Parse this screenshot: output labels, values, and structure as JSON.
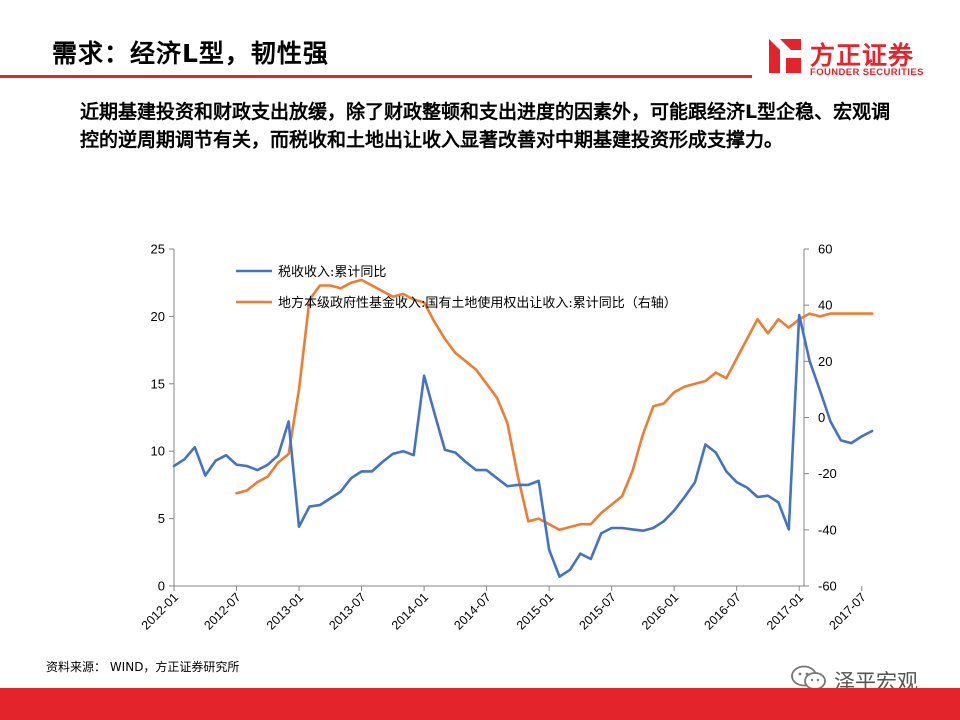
{
  "header": {
    "title": "需求：经济L型，韧性强"
  },
  "logo": {
    "name_cn": "方正证券",
    "name_en": "FOUNDER SECURITIES"
  },
  "summary": "近期基建投资和财政支出放缓，除了财政整顿和支出进度的因素外，可能跟经济L型企稳、宏观调控的逆周期调节有关，而税收和土地出让收入显著改善对中期基建投资形成支撑力。",
  "source": "资料来源： WIND，方正证券研究所",
  "watermark": "泽平宏观",
  "colors": {
    "brand": "#e3242b",
    "tax": "#4472c4",
    "land": "#ed7d31"
  },
  "chart_data": {
    "type": "line",
    "x_ticks": [
      "2012-01",
      "2012-07",
      "2013-01",
      "2013-07",
      "2014-01",
      "2014-07",
      "2015-01",
      "2015-07",
      "2016-01",
      "2016-07",
      "2017-01",
      "2017-07"
    ],
    "y_left": {
      "min": 0,
      "max": 25,
      "ticks": [
        0,
        5,
        10,
        15,
        20,
        25
      ]
    },
    "y_right": {
      "min": -60,
      "max": 60,
      "ticks": [
        -60,
        -40,
        -20,
        0,
        20,
        40,
        60
      ]
    },
    "legend_position": "top-left",
    "series": [
      {
        "name": "税收收入:累计同比",
        "axis": "left",
        "color": "#4472c4",
        "x": [
          "2012-01",
          "2012-02",
          "2012-03",
          "2012-04",
          "2012-05",
          "2012-06",
          "2012-07",
          "2012-08",
          "2012-09",
          "2012-10",
          "2012-11",
          "2012-12",
          "2013-01",
          "2013-02",
          "2013-03",
          "2013-04",
          "2013-05",
          "2013-06",
          "2013-07",
          "2013-08",
          "2013-09",
          "2013-10",
          "2013-11",
          "2013-12",
          "2014-01",
          "2014-02",
          "2014-03",
          "2014-04",
          "2014-05",
          "2014-06",
          "2014-07",
          "2014-08",
          "2014-09",
          "2014-10",
          "2014-11",
          "2014-12",
          "2015-01",
          "2015-02",
          "2015-03",
          "2015-04",
          "2015-05",
          "2015-06",
          "2015-07",
          "2015-08",
          "2015-09",
          "2015-10",
          "2015-11",
          "2015-12",
          "2016-01",
          "2016-02",
          "2016-03",
          "2016-04",
          "2016-05",
          "2016-06",
          "2016-07",
          "2016-08",
          "2016-09",
          "2016-10",
          "2016-11",
          "2016-12",
          "2017-01",
          "2017-02",
          "2017-03",
          "2017-04",
          "2017-05",
          "2017-06",
          "2017-07",
          "2017-08"
        ],
        "values": [
          8.9,
          9.4,
          10.3,
          8.2,
          9.3,
          9.7,
          9.0,
          8.9,
          8.6,
          9.0,
          9.7,
          12.2,
          4.4,
          5.9,
          6.0,
          6.5,
          7.0,
          8.0,
          8.5,
          8.5,
          9.2,
          9.8,
          10.0,
          9.7,
          15.6,
          12.8,
          10.1,
          9.9,
          9.2,
          8.6,
          8.6,
          8.0,
          7.4,
          7.5,
          7.5,
          7.8,
          2.7,
          0.7,
          1.2,
          2.4,
          2.0,
          3.9,
          4.3,
          4.3,
          4.2,
          4.1,
          4.3,
          4.8,
          5.6,
          6.6,
          7.7,
          10.5,
          9.9,
          8.5,
          7.7,
          7.3,
          6.6,
          6.7,
          6.2,
          4.2,
          20.1,
          16.7,
          14.5,
          12.2,
          10.8,
          10.6,
          11.1,
          11.5
        ]
      },
      {
        "name": "地方本级政府性基金收入:国有土地使用权出让收入:累计同比（右轴）",
        "axis": "right",
        "color": "#ed7d31",
        "x": [
          "2012-07",
          "2012-08",
          "2012-09",
          "2012-10",
          "2012-11",
          "2012-12",
          "2013-01",
          "2013-02",
          "2013-03",
          "2013-04",
          "2013-05",
          "2013-06",
          "2013-07",
          "2013-08",
          "2013-09",
          "2013-10",
          "2013-11",
          "2013-12",
          "2014-01",
          "2014-02",
          "2014-03",
          "2014-04",
          "2014-05",
          "2014-06",
          "2014-07",
          "2014-08",
          "2014-09",
          "2014-10",
          "2014-11",
          "2014-12",
          "2015-01",
          "2015-02",
          "2015-03",
          "2015-04",
          "2015-05",
          "2015-06",
          "2015-07",
          "2015-08",
          "2015-09",
          "2015-10",
          "2015-11",
          "2015-12",
          "2016-01",
          "2016-02",
          "2016-03",
          "2016-04",
          "2016-05",
          "2016-06",
          "2016-07",
          "2016-08",
          "2016-09",
          "2016-10",
          "2016-11",
          "2016-12",
          "2017-01",
          "2017-02",
          "2017-03",
          "2017-04",
          "2017-05",
          "2017-06",
          "2017-07",
          "2017-08"
        ],
        "values": [
          -27,
          -26,
          -23,
          -21,
          -16,
          -13,
          10,
          42,
          47,
          47,
          46,
          48,
          49,
          47,
          45,
          43,
          44,
          42,
          41,
          34,
          28,
          23,
          20,
          17,
          12,
          7,
          -2,
          -21,
          -37,
          -36,
          -38,
          -40,
          -39,
          -38,
          -38,
          -34,
          -31,
          -28,
          -19,
          -6,
          4,
          5,
          9,
          11,
          12,
          13,
          16,
          14,
          21,
          28,
          35,
          30,
          35,
          32,
          35,
          37,
          36,
          37,
          37,
          37,
          37,
          37
        ]
      }
    ]
  }
}
